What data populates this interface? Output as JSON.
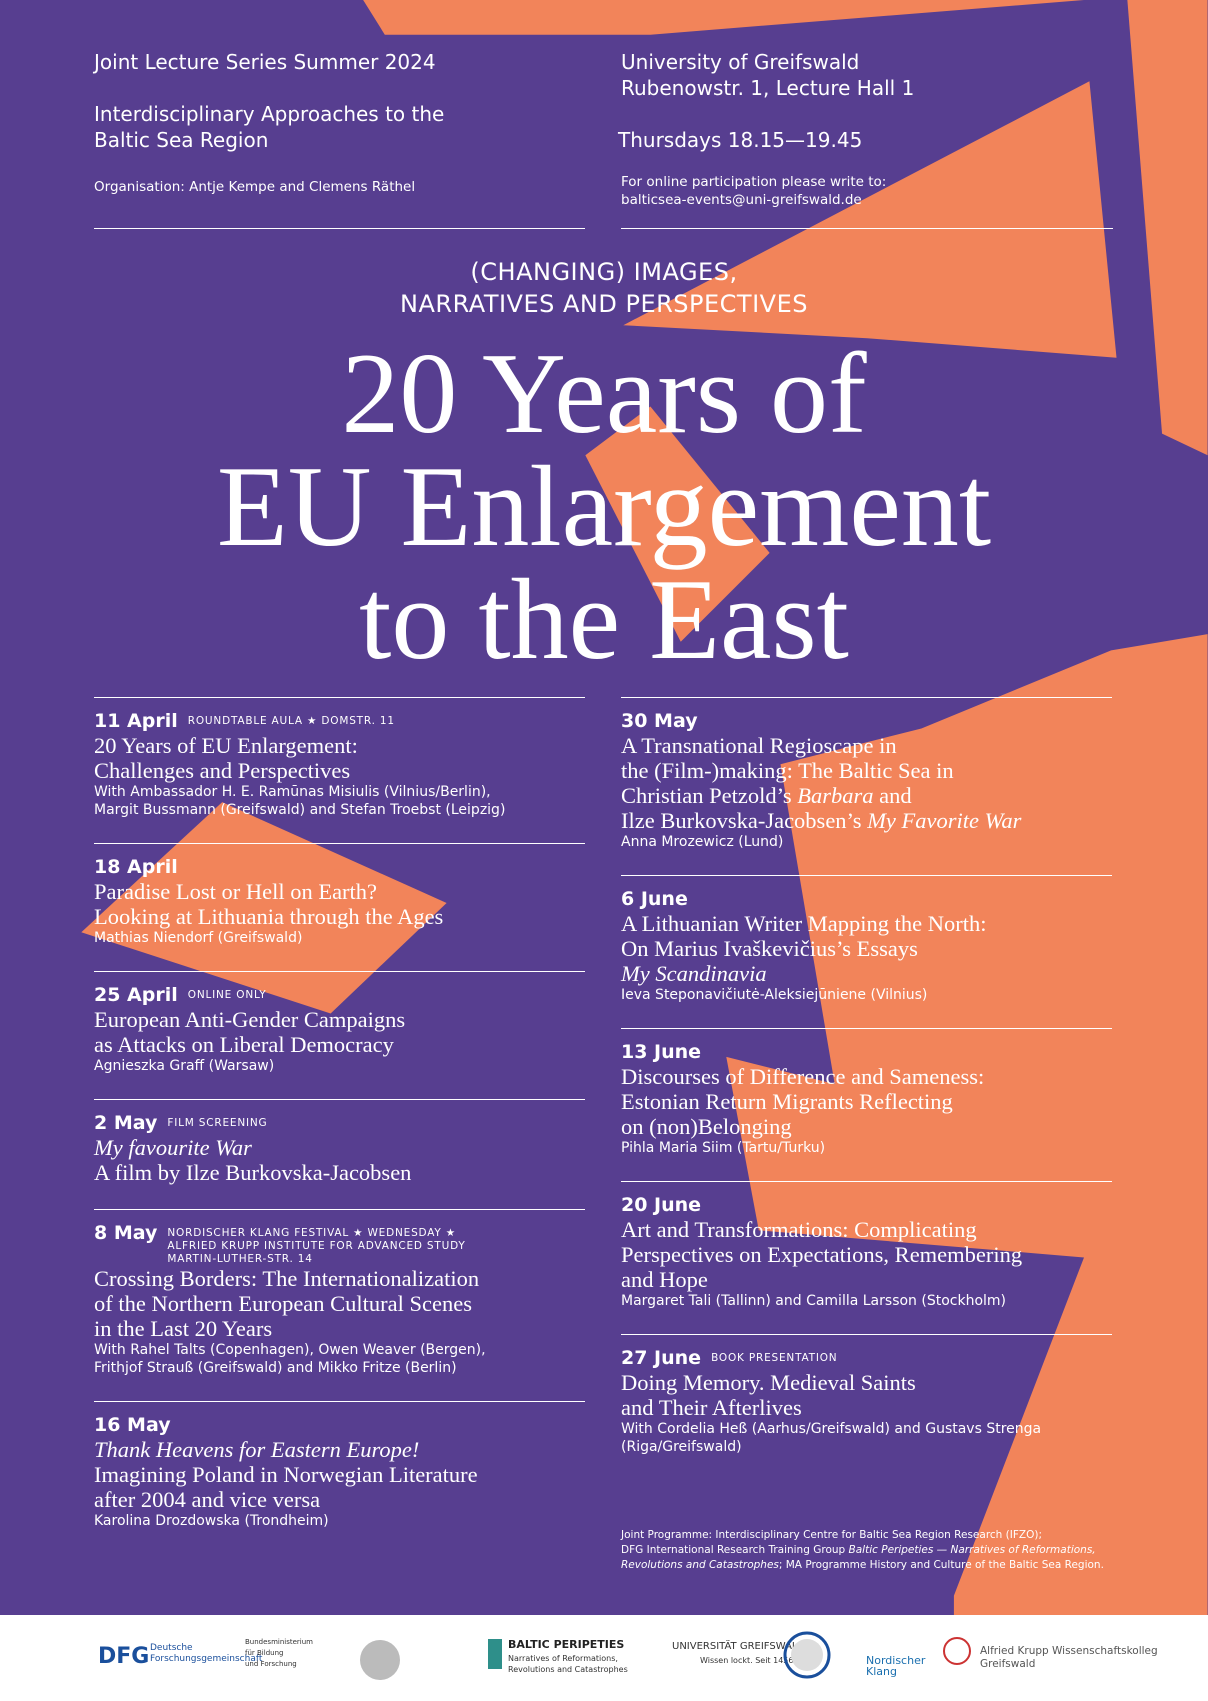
{
  "header": {
    "series": "Joint Lecture Series Summer 2024",
    "series_title": [
      "Interdisciplinary Approaches to the",
      "Baltic Sea Region"
    ],
    "organisation": "Organisation: Antje Kempe and Clemens Räthel",
    "venue": [
      "University of Greifswald",
      "Rubenowstr. 1, Lecture Hall 1"
    ],
    "time": "Thursdays 18.15—19.45",
    "online": [
      "For online participation please write to:",
      "balticsea-events@uni-greifswald.de"
    ]
  },
  "subtitle": [
    "(CHANGING) IMAGES,",
    "NARRATIVES AND PERSPECTIVES"
  ],
  "title": [
    "20 Years of",
    "EU Enlargement",
    "to the East"
  ],
  "events_left": [
    {
      "date": "11 April",
      "tag": [
        "ROUNDTABLE AULA ★ DOMSTR. 11"
      ],
      "lines": [
        [
          {
            "text": "20 Years of EU Enlargement:"
          }
        ],
        [
          {
            "text": "Challenges and Perspectives"
          }
        ]
      ],
      "people": [
        "With Ambassador H. E. Ramūnas Misiulis (Vilnius/Berlin),",
        "Margit Bussmann (Greifswald) and Stefan Troebst (Leipzig)"
      ]
    },
    {
      "date": "18 April",
      "lines": [
        [
          {
            "text": "Paradise Lost or Hell on Earth?"
          }
        ],
        [
          {
            "text": "Looking at Lithuania through the Ages"
          }
        ]
      ],
      "people": [
        "Mathias Niendorf (Greifswald)"
      ]
    },
    {
      "date": "25 April",
      "tag": [
        "ONLINE ONLY"
      ],
      "lines": [
        [
          {
            "text": "European Anti-Gender Campaigns"
          }
        ],
        [
          {
            "text": "as Attacks on Liberal Democracy"
          }
        ]
      ],
      "people": [
        "Agnieszka Graff (Warsaw)"
      ]
    },
    {
      "date": "2 May",
      "tag": [
        "FILM SCREENING"
      ],
      "lines": [
        [
          {
            "text": "My favourite War",
            "italic": true
          }
        ],
        [
          {
            "text": "A film by Ilze Burkovska-Jacobsen"
          }
        ]
      ],
      "people": []
    },
    {
      "date": "8 May",
      "tag": [
        "NORDISCHER KLANG FESTIVAL ★ WEDNESDAY ★",
        "ALFRIED KRUPP INSTITUTE FOR ADVANCED STUDY",
        "MARTIN-LUTHER-STR. 14"
      ],
      "lines": [
        [
          {
            "text": "Crossing Borders: The Internationalization"
          }
        ],
        [
          {
            "text": "of the Northern European Cultural Scenes"
          }
        ],
        [
          {
            "text": "in the Last 20 Years"
          }
        ]
      ],
      "people": [
        "With Rahel Talts (Copenhagen), Owen Weaver (Bergen),",
        "Frithjof Strauß (Greifswald) and Mikko Fritze (Berlin)"
      ]
    },
    {
      "date": "16 May",
      "lines": [
        [
          {
            "text": "Thank Heavens for Eastern Europe!",
            "italic": true
          }
        ],
        [
          {
            "text": "Imagining Poland in Norwegian Literature"
          }
        ],
        [
          {
            "text": "after 2004 and vice versa"
          }
        ]
      ],
      "people": [
        "Karolina Drozdowska (Trondheim)"
      ]
    }
  ],
  "events_right": [
    {
      "date": "30 May",
      "lines": [
        [
          {
            "text": "A Transnational Regioscape in"
          }
        ],
        [
          {
            "text": "the (Film-)making: The Baltic Sea in"
          }
        ],
        [
          {
            "text": "Christian Petzold’s "
          },
          {
            "text": "Barbara",
            "italic": true
          },
          {
            "text": " and"
          }
        ],
        [
          {
            "text": "Ilze Burkovska-Jacobsen’s "
          },
          {
            "text": "My Favorite War",
            "italic": true
          }
        ]
      ],
      "people": [
        "Anna Mrozewicz (Lund)"
      ]
    },
    {
      "date": "6 June",
      "lines": [
        [
          {
            "text": "A Lithuanian Writer Mapping the North:"
          }
        ],
        [
          {
            "text": "On Marius Ivaškevičius’s Essays"
          }
        ],
        [
          {
            "text": "My Scandinavia",
            "italic": true
          }
        ]
      ],
      "people": [
        "Ieva Steponavičiutė-Aleksiejūniene (Vilnius)"
      ]
    },
    {
      "date": "13 June",
      "lines": [
        [
          {
            "text": "Discourses of Difference and Sameness:"
          }
        ],
        [
          {
            "text": "Estonian Return Migrants Reflecting"
          }
        ],
        [
          {
            "text": "on (non)Belonging"
          }
        ]
      ],
      "people": [
        "Pihla Maria Siim (Tartu/Turku)"
      ]
    },
    {
      "date": "20 June",
      "lines": [
        [
          {
            "text": "Art and Transformations: Complicating"
          }
        ],
        [
          {
            "text": "Perspectives on Expectations, Remembering"
          }
        ],
        [
          {
            "text": "and Hope"
          }
        ]
      ],
      "people": [
        "Margaret Tali (Tallinn) and Camilla Larsson (Stockholm)"
      ]
    },
    {
      "date": "27 June",
      "tag": [
        "BOOK PRESENTATION"
      ],
      "lines": [
        [
          {
            "text": "Doing Memory. Medieval Saints"
          }
        ],
        [
          {
            "text": "and Their Afterlives"
          }
        ]
      ],
      "people": [
        "With Cordelia Heß (Aarhus/Greifswald) and Gustavs Strenga",
        "(Riga/Greifswald)"
      ]
    }
  ],
  "note": [
    [
      {
        "text": "Joint Programme: Interdisciplinary Centre for Baltic Sea Region Research (IFZO);"
      }
    ],
    [
      {
        "text": "DFG International Research Training Group "
      },
      {
        "text": "Baltic Peripeties — Narratives of Reformations,",
        "italic": true
      }
    ],
    [
      {
        "text": "Revolutions and Catastrophes",
        "italic": true
      },
      {
        "text": "; MA Programme History and Culture of the Baltic Sea Region."
      }
    ]
  ],
  "logos": {
    "dfg": "DFG",
    "dfg_name": [
      "Deutsche",
      "Forschungsgemeinschaft"
    ],
    "bmbf": [
      "Bundesministerium",
      "für Bildung",
      "und Forschung"
    ],
    "baltic": "BALTIC PERIPETIES",
    "baltic_sub": [
      "Narratives of Reformations,",
      "Revolutions and Catastrophes"
    ],
    "uni": "UNIVERSITÄT GREIFSWALD",
    "uni_sub": "Wissen lockt. Seit 1456",
    "klang": [
      "Nordischer",
      "Klang"
    ],
    "krupp": [
      "Alfried Krupp Wissenschaftskolleg",
      "Greifswald"
    ]
  }
}
